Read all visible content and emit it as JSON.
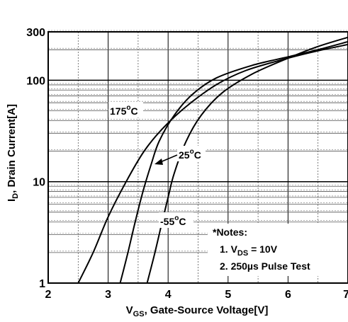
{
  "chart_data": {
    "type": "line",
    "xlabel": "VGS, Gate-Source Voltage[V]",
    "xlabel_main": "V",
    "xlabel_sub": "GS",
    "xlabel_rest": ", Gate-Source Voltage[V]",
    "ylabel": "ID, Drain Current[A]",
    "ylabel_main": "I",
    "ylabel_sub": "D",
    "ylabel_rest": ", Drain Current[A]",
    "xlim": [
      2,
      7
    ],
    "ylim": [
      1,
      300
    ],
    "yscale": "log",
    "grid": true,
    "x_ticks": [
      "2",
      "3",
      "4",
      "5",
      "6",
      "7"
    ],
    "y_ticks": [
      {
        "value": 1,
        "label": "1"
      },
      {
        "value": 10,
        "label": "10"
      },
      {
        "value": 100,
        "label": "100"
      },
      {
        "value": 300,
        "label": "300"
      }
    ],
    "series": [
      {
        "temp": "175",
        "points": [
          [
            2.5,
            1
          ],
          [
            2.75,
            2
          ],
          [
            3.0,
            4.5
          ],
          [
            3.3,
            10
          ],
          [
            3.6,
            20
          ],
          [
            3.9,
            33
          ],
          [
            4.3,
            55
          ],
          [
            4.8,
            90
          ],
          [
            5.3,
            125
          ],
          [
            6.0,
            165
          ],
          [
            6.5,
            195
          ],
          [
            7.0,
            225
          ]
        ]
      },
      {
        "temp": "25",
        "points": [
          [
            3.2,
            1
          ],
          [
            3.33,
            2
          ],
          [
            3.45,
            4
          ],
          [
            3.58,
            8
          ],
          [
            3.72,
            15
          ],
          [
            3.85,
            25
          ],
          [
            4.1,
            45
          ],
          [
            4.4,
            72
          ],
          [
            4.8,
            105
          ],
          [
            5.4,
            140
          ],
          [
            6.0,
            170
          ],
          [
            6.5,
            200
          ],
          [
            7.0,
            240
          ]
        ]
      },
      {
        "temp": "-55",
        "points": [
          [
            3.65,
            1
          ],
          [
            3.78,
            2
          ],
          [
            3.9,
            4
          ],
          [
            4.0,
            7
          ],
          [
            4.1,
            12
          ],
          [
            4.3,
            25
          ],
          [
            4.55,
            45
          ],
          [
            4.9,
            75
          ],
          [
            5.4,
            115
          ],
          [
            6.0,
            165
          ],
          [
            6.5,
            215
          ],
          [
            7.0,
            265
          ]
        ]
      }
    ],
    "annotations": [
      {
        "temp": "175",
        "unit": "C"
      },
      {
        "temp": "25",
        "unit": "C"
      },
      {
        "temp": "-55",
        "unit": "C"
      }
    ],
    "degree_symbol": "o",
    "notes": {
      "title": "*Notes:",
      "line1_prefix": "1. V",
      "line1_sub": "DS",
      "line1_suffix": " = 10V",
      "line2": "2. 250µs Pulse Test"
    }
  }
}
